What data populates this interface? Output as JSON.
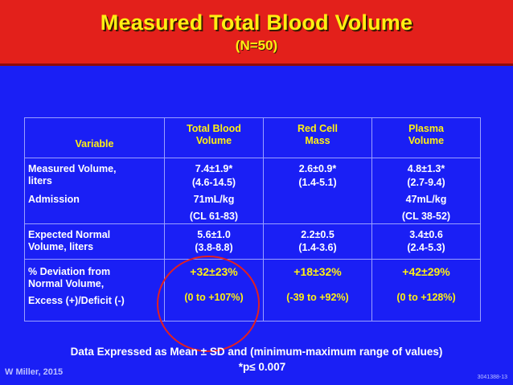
{
  "slide": {
    "title": "Measured Total Blood Volume",
    "subtitle": "(N=50)"
  },
  "table": {
    "headers": {
      "variable": "Variable",
      "tbv": [
        "Total Blood",
        "Volume"
      ],
      "rcm": [
        "Red Cell",
        "Mass"
      ],
      "pv": [
        "Plasma",
        "Volume"
      ]
    },
    "rows": [
      {
        "label": [
          "Measured Volume,",
          "liters",
          "Admission"
        ],
        "tbv": [
          "7.4±1.9*",
          "(4.6-14.5)",
          "71mL/kg",
          "(CL 61-83)"
        ],
        "rcm": [
          "2.6±0.9*",
          "(1.4-5.1)"
        ],
        "pv": [
          "4.8±1.3*",
          "(2.7-9.4)",
          "47mL/kg",
          "(CL 38-52)"
        ]
      },
      {
        "label": [
          "Expected Normal",
          "Volume, liters"
        ],
        "tbv": [
          "5.6±1.0",
          "(3.8-8.8)"
        ],
        "rcm": [
          "2.2±0.5",
          "(1.4-3.6)"
        ],
        "pv": [
          "3.4±0.6",
          "(2.4-5.3)"
        ]
      },
      {
        "label": [
          "% Deviation from",
          "Normal Volume,",
          "Excess (+)/Deficit (-)"
        ],
        "tbv": [
          "+32±23%",
          "(0 to +107%)"
        ],
        "rcm": [
          "+18±32%",
          "(-39 to +92%)"
        ],
        "pv": [
          "+42±29%",
          "(0 to +128%)"
        ]
      }
    ]
  },
  "footnote": {
    "line1": "Data Expressed as Mean ± SD and (minimum-maximum range of values)",
    "line2": "*p≤ 0.007"
  },
  "author": "W Miller, 2015",
  "slide_id": "3041388-13",
  "colors": {
    "background": "#1a1ff5",
    "title_bar": "#e3201b",
    "title_text": "#ffef12",
    "highlight_circle": "#e32020"
  }
}
